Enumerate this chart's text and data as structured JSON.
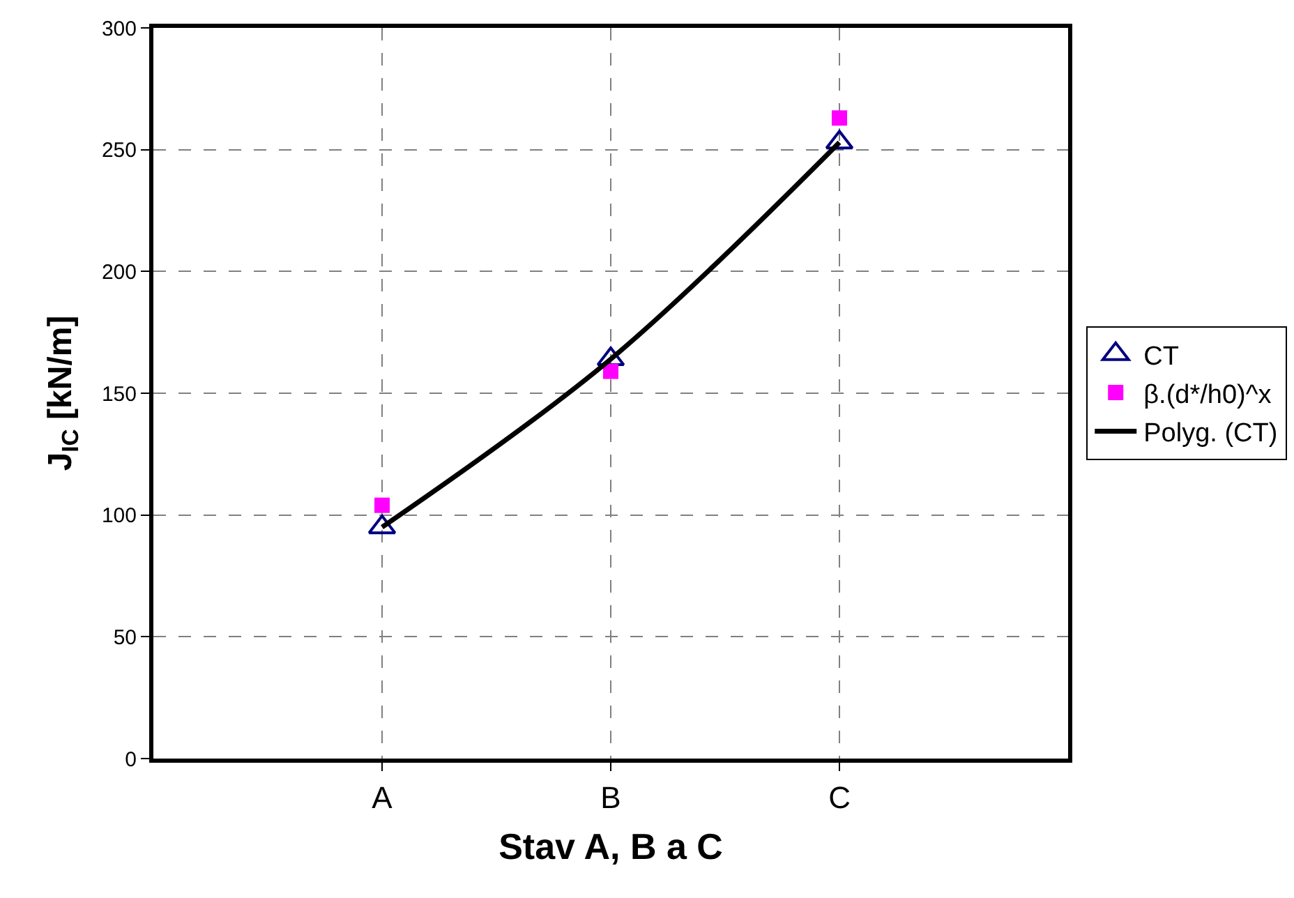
{
  "chart_data": {
    "type": "scatter",
    "xlabel": "Stav A, B a C",
    "ylabel": "J$_{IC}$ [kN/m]",
    "categories": [
      "A",
      "B",
      "C"
    ],
    "series": [
      {
        "name": "CT",
        "color": "#000080",
        "marker": "triangle",
        "values": [
          95,
          164,
          253
        ]
      },
      {
        "name": "β.(d*/h0)^x",
        "color": "#ff00ff",
        "marker": "square",
        "values": [
          104,
          159,
          263
        ]
      },
      {
        "name": "Polyg. (CT)",
        "type": "line",
        "color": "#000000",
        "marker": "none",
        "line_style": "solid",
        "x": [
          "A",
          "B",
          "C"
        ],
        "values": [
          95,
          164,
          253
        ]
      }
    ],
    "ylim": [
      0,
      300
    ],
    "yticks": [
      0,
      50,
      100,
      150,
      200,
      250,
      300
    ],
    "grid": true,
    "legend": "right"
  }
}
